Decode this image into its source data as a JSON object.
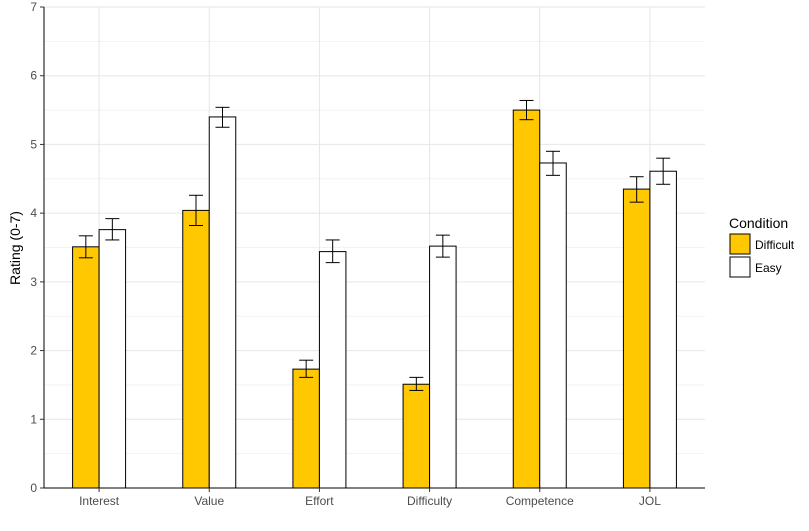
{
  "chart_data": {
    "type": "bar",
    "title": "",
    "xlabel": "",
    "ylabel": "Rating (0-7)",
    "ylim": [
      0,
      7
    ],
    "yticks": [
      0,
      1,
      2,
      3,
      4,
      5,
      6,
      7
    ],
    "grid": true,
    "legend": {
      "title": "Condition",
      "position": "right"
    },
    "categories": [
      "Interest",
      "Value",
      "Effort",
      "Difficulty",
      "Competence",
      "JOL"
    ],
    "series": [
      {
        "name": "Difficult",
        "color": "#FFC800",
        "values": [
          3.51,
          4.04,
          1.73,
          1.51,
          5.5,
          4.35
        ],
        "error_low": [
          3.35,
          3.82,
          1.61,
          1.42,
          5.36,
          4.16
        ],
        "error_high": [
          3.67,
          4.26,
          1.86,
          1.61,
          5.64,
          4.53
        ]
      },
      {
        "name": "Easy",
        "color": "#FFFFFF",
        "values": [
          3.76,
          5.4,
          3.44,
          3.52,
          4.73,
          4.61
        ],
        "error_low": [
          3.61,
          5.25,
          3.28,
          3.36,
          4.55,
          4.42
        ],
        "error_high": [
          3.92,
          5.54,
          3.61,
          3.68,
          4.9,
          4.8
        ]
      }
    ]
  }
}
